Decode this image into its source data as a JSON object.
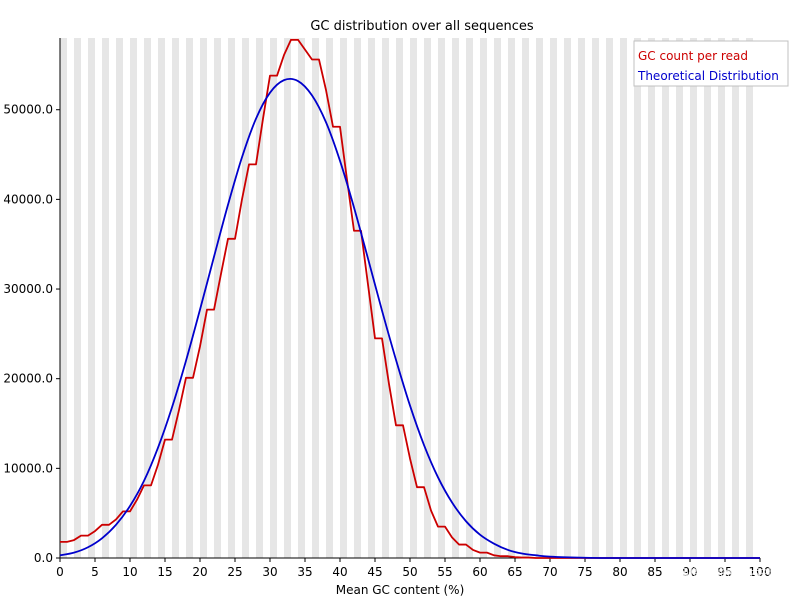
{
  "chart_data": {
    "type": "line",
    "title": "GC distribution over all sequences",
    "xlabel": "Mean GC content (%)",
    "ylabel": "",
    "xlim": [
      0,
      100
    ],
    "ylim": [
      0,
      58000
    ],
    "x_ticks": [
      "0",
      "5",
      "10",
      "15",
      "20",
      "25",
      "30",
      "35",
      "40",
      "45",
      "50",
      "55",
      "60",
      "65",
      "70",
      "75",
      "80",
      "85",
      "90",
      "95",
      "100"
    ],
    "y_ticks": [
      "0.0",
      "10000.0",
      "20000.0",
      "30000.0",
      "40000.0",
      "50000.0"
    ],
    "legend_position": "top-right",
    "series": [
      {
        "name": "GC count per read",
        "color": "#cc0000",
        "style": "step",
        "x": [
          0,
          1,
          2,
          3,
          4,
          5,
          6,
          7,
          8,
          9,
          10,
          11,
          12,
          13,
          14,
          15,
          16,
          17,
          18,
          19,
          20,
          21,
          22,
          23,
          24,
          25,
          26,
          27,
          28,
          29,
          30,
          31,
          32,
          33,
          34,
          35,
          36,
          37,
          38,
          39,
          40,
          41,
          42,
          43,
          44,
          45,
          46,
          47,
          48,
          49,
          50,
          51,
          52,
          53,
          54,
          55,
          56,
          57,
          58,
          59,
          60,
          61,
          62,
          63,
          64,
          65,
          66,
          67,
          68,
          69,
          70,
          71,
          72,
          73,
          74,
          75,
          80,
          85,
          90,
          95,
          100
        ],
        "values": [
          1800,
          1800,
          2000,
          2500,
          2500,
          3000,
          3700,
          3700,
          4300,
          5200,
          5200,
          6500,
          8100,
          8100,
          10400,
          13200,
          13200,
          16500,
          20100,
          20100,
          23600,
          27700,
          27700,
          31700,
          35600,
          35600,
          40000,
          43900,
          43900,
          49000,
          53800,
          53800,
          56100,
          57800,
          57800,
          56700,
          55600,
          55600,
          52200,
          48100,
          48100,
          42200,
          36500,
          36500,
          30500,
          24500,
          24500,
          19400,
          14800,
          14800,
          11100,
          7900,
          7900,
          5300,
          3500,
          3500,
          2300,
          1500,
          1500,
          900,
          600,
          600,
          300,
          200,
          200,
          100,
          50,
          50,
          0,
          0,
          0,
          0,
          0,
          0,
          0,
          0,
          0,
          0,
          0,
          0,
          0
        ]
      },
      {
        "name": "Theoretical Distribution",
        "color": "#0000cc",
        "style": "smooth",
        "x": [
          0,
          2,
          4,
          6,
          8,
          10,
          12,
          14,
          16,
          18,
          20,
          22,
          24,
          26,
          28,
          30,
          32,
          34,
          36,
          38,
          40,
          42,
          44,
          46,
          48,
          50,
          52,
          54,
          56,
          58,
          60,
          62,
          64,
          66,
          68,
          70,
          75,
          80,
          85,
          90,
          95,
          100
        ],
        "values": [
          300,
          600,
          1200,
          2200,
          3700,
          5800,
          8600,
          12300,
          16800,
          22000,
          27700,
          33600,
          39400,
          44700,
          49000,
          51900,
          53300,
          53200,
          51600,
          48600,
          44300,
          39100,
          33400,
          27600,
          22100,
          17000,
          12600,
          9000,
          6200,
          4100,
          2600,
          1600,
          900,
          500,
          300,
          150,
          30,
          0,
          0,
          0,
          0,
          0
        ]
      }
    ]
  },
  "watermark": "@稀土掘金技术社区"
}
